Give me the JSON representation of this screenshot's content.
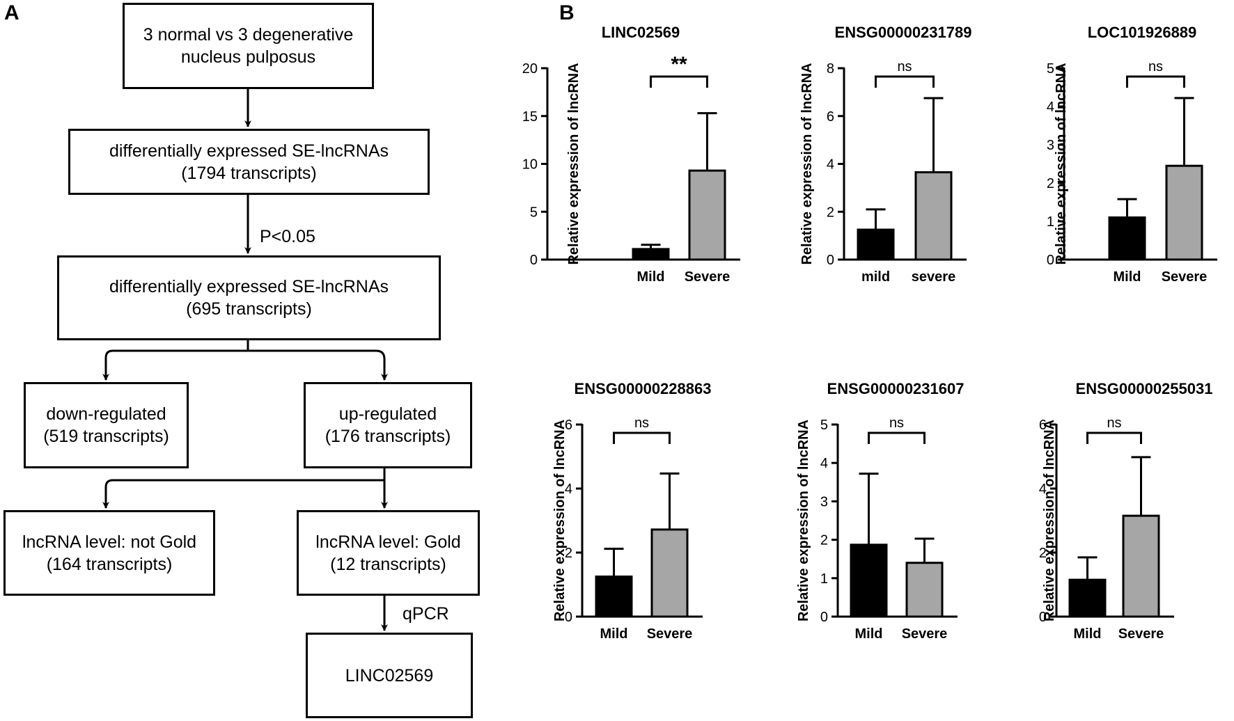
{
  "panel_a": {
    "letter": "A",
    "box1": "3 normal vs 3 degenerative\nnucleus pulposus",
    "box2": "differentially expressed SE-lncRNAs\n(1794 transcripts)",
    "arrow2_label": "P<0.05",
    "box3": "differentially  expressed SE-lncRNAs\n(695 transcripts)",
    "down": "down-regulated\n(519 transcripts)",
    "up": "up-regulated\n(176 transcripts)",
    "not_gold": "lncRNA level: not Gold\n(164 transcripts)",
    "gold": "lncRNA level: Gold\n(12 transcripts)",
    "qpcr_label": "qPCR",
    "final": "LINC02569"
  },
  "panel_b": {
    "letter": "B"
  },
  "chart_data": [
    {
      "type": "bar",
      "title": "LINC02569",
      "ylabel": "Relative expression of lncRNA",
      "categories": [
        "Mild",
        "Severe"
      ],
      "values": [
        1.1,
        9.3
      ],
      "error": [
        0.45,
        6.0
      ],
      "ylim": [
        0,
        20
      ],
      "yticks": [
        0,
        5,
        10,
        15,
        20
      ],
      "ytick_labels": [
        "0",
        "5",
        "10",
        "15",
        "20"
      ],
      "significance": "**",
      "colors": [
        "#000000",
        "#a6a6a6"
      ]
    },
    {
      "type": "bar",
      "title": "ENSG00000231789",
      "ylabel": "Relative expression of lncRNA",
      "categories": [
        "mild",
        "severe"
      ],
      "values": [
        1.25,
        3.65
      ],
      "error": [
        0.85,
        3.1
      ],
      "ylim": [
        0,
        8
      ],
      "yticks": [
        0,
        2,
        4,
        6,
        8
      ],
      "ytick_labels": [
        "0",
        "2",
        "4",
        "6",
        "8"
      ],
      "significance": "ns",
      "colors": [
        "#000000",
        "#a6a6a6"
      ]
    },
    {
      "type": "bar",
      "title": "LOC101926889",
      "ylabel": "Relative expression of lncRNA",
      "categories": [
        "Mild",
        "Severe"
      ],
      "values": [
        1.1,
        2.45
      ],
      "error": [
        0.48,
        1.77
      ],
      "ylim": [
        0,
        5
      ],
      "yticks": [
        0,
        1,
        2,
        3,
        4,
        5
      ],
      "ytick_labels": [
        "0",
        "1",
        "2",
        "3",
        "4",
        "5"
      ],
      "significance": "ns",
      "colors": [
        "#000000",
        "#a6a6a6"
      ]
    },
    {
      "type": "bar",
      "title": "ENSG00000228863",
      "ylabel": "Relative expression of lncRNA",
      "categories": [
        "Mild",
        "Severe"
      ],
      "values": [
        1.25,
        2.72
      ],
      "error": [
        0.87,
        1.75
      ],
      "ylim": [
        0,
        6
      ],
      "yticks": [
        0,
        2,
        4,
        6
      ],
      "ytick_labels": [
        "0",
        "2",
        "4",
        "6"
      ],
      "significance": "ns",
      "colors": [
        "#000000",
        "#a6a6a6"
      ]
    },
    {
      "type": "bar",
      "title": "ENSG00000231607",
      "ylabel": "Relative expression of lncRNA",
      "categories": [
        "Mild",
        "Severe"
      ],
      "values": [
        1.87,
        1.4
      ],
      "error": [
        1.85,
        0.63
      ],
      "ylim": [
        0,
        5
      ],
      "yticks": [
        0,
        1,
        2,
        3,
        4,
        5
      ],
      "ytick_labels": [
        "0",
        "1",
        "2",
        "3",
        "4",
        "5"
      ],
      "significance": "ns",
      "colors": [
        "#000000",
        "#a6a6a6"
      ]
    },
    {
      "type": "bar",
      "title": "ENSG00000255031",
      "ylabel": "Relative expression of lncRNA",
      "categories": [
        "Mild",
        "Severe"
      ],
      "values": [
        1.15,
        3.15
      ],
      "error": [
        0.7,
        1.83
      ],
      "ylim": [
        0,
        6
      ],
      "yticks": [
        0,
        2,
        4,
        6
      ],
      "ytick_labels": [
        "0",
        "2",
        "4",
        "6"
      ],
      "significance": "ns",
      "colors": [
        "#000000",
        "#a6a6a6"
      ]
    }
  ]
}
